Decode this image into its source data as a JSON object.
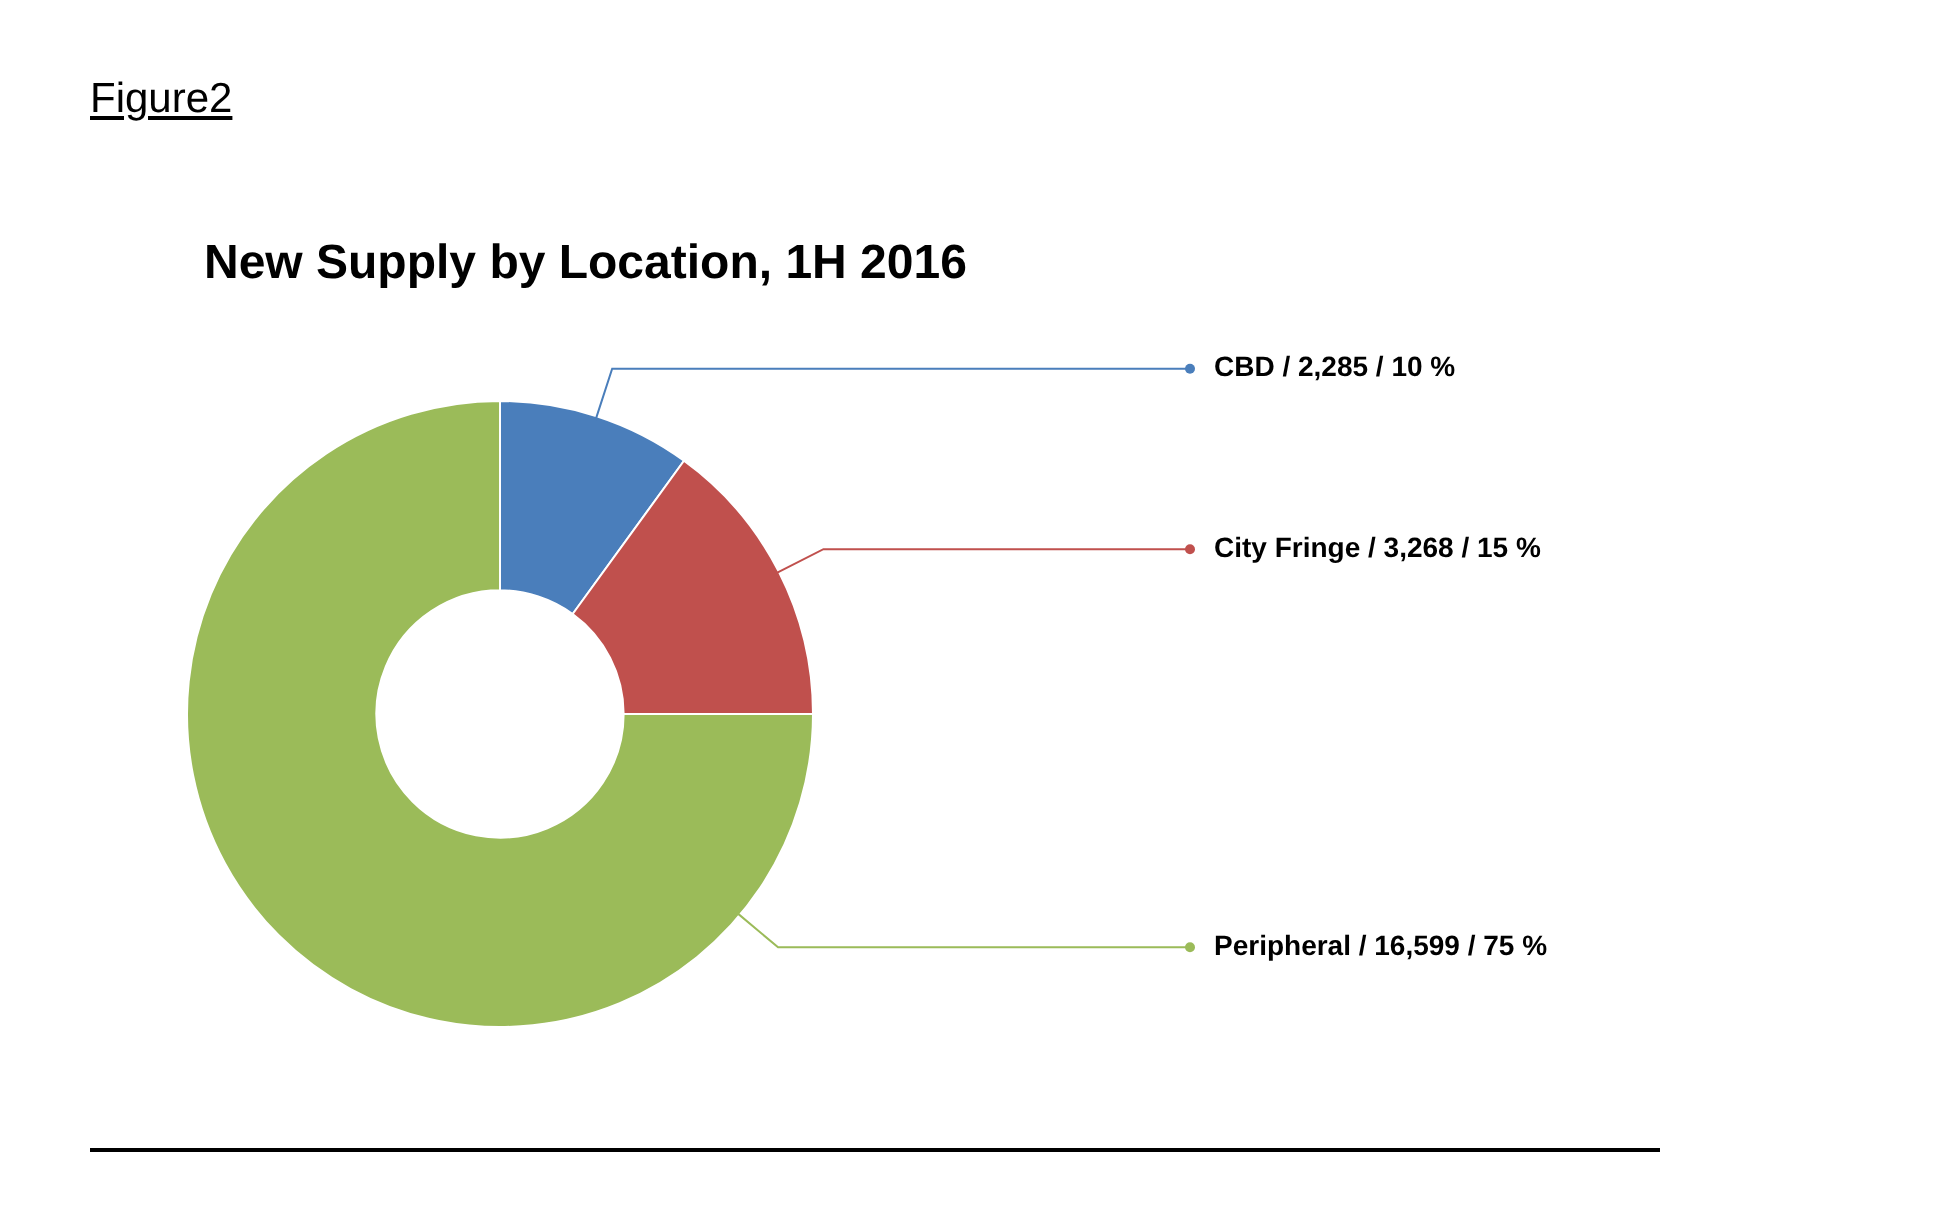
{
  "chart_data": {
    "type": "donut",
    "title": "New Supply by Location, 1H 2016",
    "categories": [
      "CBD / 2,285 / 10 %",
      "City Fringe / 3,268 / 15 %",
      "Peripheral / 16,599 / 75 %"
    ],
    "values": [
      10,
      15,
      75
    ],
    "colors": [
      "#4a7ebb",
      "#c0504d",
      "#9bbb59"
    ],
    "annotations": [
      "Figure2"
    ],
    "legend": "right"
  }
}
